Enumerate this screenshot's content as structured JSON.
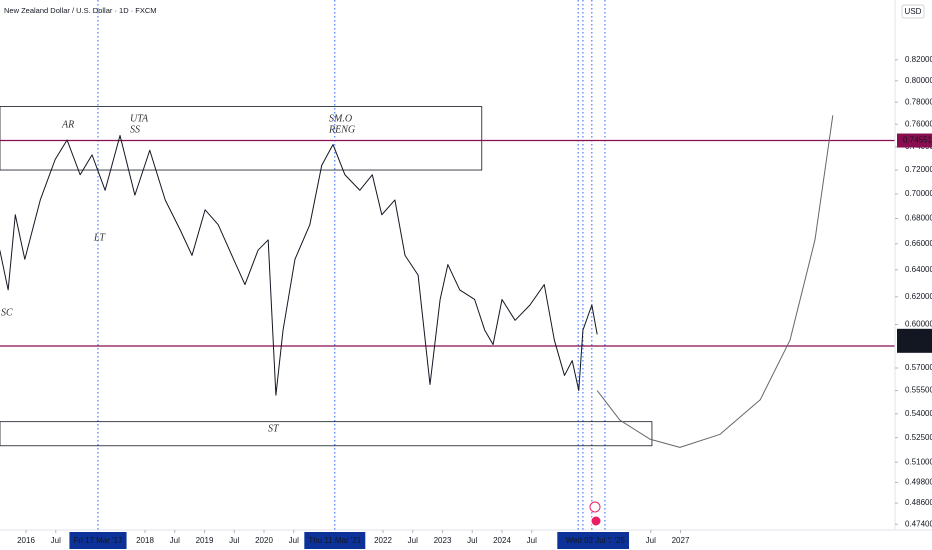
{
  "chart_data": {
    "type": "line",
    "title": "New Zealand Dollar / U.S. Dollar · 1D · FXCM",
    "currency": "USD",
    "log_scale": true,
    "grid": false,
    "xlim": [
      2015.563,
      2030.605
    ],
    "ylim": [
      0.4708,
      0.88
    ],
    "xticks": [
      2016,
      {
        "value": 2016.5,
        "label": "Jul"
      },
      2018,
      {
        "value": 2018.5,
        "label": "Jul"
      },
      2019,
      {
        "value": 2019.5,
        "label": "Jul"
      },
      2020,
      {
        "value": 2020.5,
        "label": "Jul"
      },
      2022,
      {
        "value": 2022.5,
        "label": "Jul"
      },
      2023,
      {
        "value": 2023.5,
        "label": "Jul"
      },
      2024,
      {
        "value": 2024.5,
        "label": "Jul"
      },
      {
        "value": 2026.5,
        "label": "Jul"
      },
      2027
    ],
    "yticks": [
      {
        "value": 0.82,
        "label": "0.82000"
      },
      {
        "value": 0.8,
        "label": "0.80000"
      },
      {
        "value": 0.78,
        "label": "0.78000"
      },
      {
        "value": 0.76,
        "label": "0.76000"
      },
      {
        "value": 0.74,
        "label": "0.74000"
      },
      {
        "value": 0.72,
        "label": "0.72000"
      },
      {
        "value": 0.7,
        "label": "0.70000"
      },
      {
        "value": 0.68,
        "label": "0.68000"
      },
      {
        "value": 0.66,
        "label": "0.66000"
      },
      {
        "value": 0.64,
        "label": "0.64000"
      },
      {
        "value": 0.62,
        "label": "0.62000"
      },
      {
        "value": 0.6,
        "label": "0.60000"
      },
      {
        "value": 0.57,
        "label": "0.57000"
      },
      {
        "value": 0.555,
        "label": "0.55500"
      },
      {
        "value": 0.54,
        "label": "0.54000"
      },
      {
        "value": 0.525,
        "label": "0.52500"
      },
      {
        "value": 0.51,
        "label": "0.51000"
      },
      {
        "value": 0.498,
        "label": "0.49800"
      },
      {
        "value": 0.486,
        "label": "0.48600"
      },
      {
        "value": 0.474,
        "label": "0.47400"
      }
    ],
    "series": [
      {
        "color": "#131722",
        "x": [
          2015.56,
          2015.7,
          2015.82,
          2015.98,
          2016.24,
          2016.49,
          2016.69,
          2016.91,
          2017.11,
          2017.33,
          2017.58,
          2017.83,
          2018.08,
          2018.34,
          2018.59,
          2018.79,
          2019.01,
          2019.23,
          2019.46,
          2019.68,
          2019.9,
          2020.07,
          2020.2,
          2020.32,
          2020.52,
          2020.77,
          2020.97,
          2021.16,
          2021.36,
          2021.61,
          2021.82,
          2021.98,
          2022.2,
          2022.37,
          2022.59,
          2022.79,
          2022.96,
          2023.09,
          2023.29,
          2023.54,
          2023.71,
          2023.85,
          2024.0,
          2024.22,
          2024.47,
          2024.71,
          2024.88,
          2025.05,
          2025.18,
          2025.29,
          2025.36,
          2025.51,
          2025.6
        ],
        "values": [
          0.655,
          0.625,
          0.683,
          0.648,
          0.695,
          0.729,
          0.746,
          0.716,
          0.733,
          0.703,
          0.75,
          0.699,
          0.737,
          0.695,
          0.671,
          0.651,
          0.687,
          0.675,
          0.651,
          0.629,
          0.655,
          0.663,
          0.552,
          0.596,
          0.648,
          0.675,
          0.724,
          0.742,
          0.716,
          0.703,
          0.716,
          0.683,
          0.695,
          0.651,
          0.636,
          0.559,
          0.618,
          0.644,
          0.625,
          0.618,
          0.596,
          0.586,
          0.618,
          0.603,
          0.614,
          0.629,
          0.589,
          0.565,
          0.575,
          0.555,
          0.596,
          0.614,
          0.593
        ]
      },
      {
        "color": "#666666",
        "x": [
          2025.6,
          2025.98,
          2026.49,
          2026.99,
          2027.66,
          2028.34,
          2028.84,
          2029.26,
          2029.56
        ],
        "values": [
          0.555,
          0.536,
          0.524,
          0.519,
          0.527,
          0.549,
          0.589,
          0.663,
          0.768
        ]
      }
    ],
    "hlines": [
      0.74551,
      0.585
    ],
    "hline_color": "#880e4f",
    "last_price": 0.59206,
    "countdown": "06:44:59",
    "boxes": [
      {
        "x": [
          2015.563,
          2023.66
        ],
        "y": [
          0.72,
          0.776
        ]
      },
      {
        "x": [
          2015.563,
          2026.52
        ],
        "y": [
          0.52,
          0.535
        ]
      }
    ],
    "vlines": [
      2017.21,
      2021.19,
      2025.28,
      2025.36,
      2025.51,
      2025.73
    ],
    "vline_color": "#2962ff",
    "date_labels": [
      {
        "value": 2017.21,
        "label": "Fri 17 Mar '17"
      },
      {
        "value": 2021.19,
        "label": "Thu 11 Mar '21"
      },
      {
        "value": 2025.09,
        "label": "Mo"
      },
      {
        "value": 2025.51,
        "label": "Wed 02 Jul '25"
      },
      {
        "value": 2025.98,
        "label": "'25"
      }
    ],
    "annotations": [
      "AR",
      "UTA",
      "SS",
      "SM.O",
      "RENG",
      "LT",
      "SC",
      "ST"
    ]
  }
}
